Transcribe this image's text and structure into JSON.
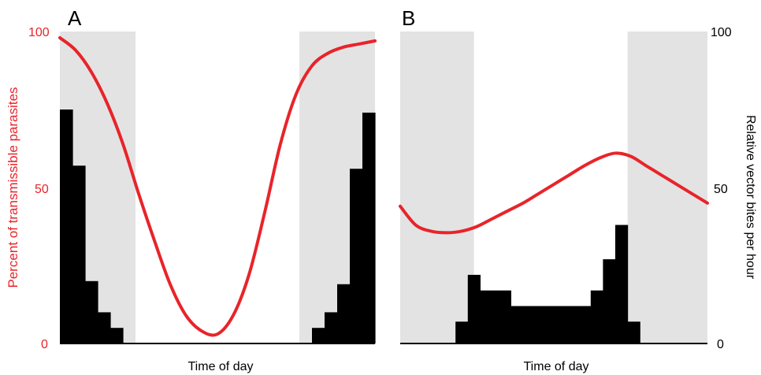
{
  "chart_data": [
    {
      "type": "bar+line",
      "panel_label": "A",
      "xlabel": "Time of day",
      "ylabel": "Percent of transmissible parasites",
      "ylim": [
        0,
        100
      ],
      "yticks": [
        "0",
        "50",
        "100"
      ],
      "shaded_periods": [
        [
          0,
          0.24
        ],
        [
          0.76,
          1.0
        ]
      ],
      "bars": {
        "x_start": [
          0.0,
          0.04,
          0.08,
          0.12,
          0.16,
          0.8,
          0.84,
          0.88,
          0.92,
          0.96
        ],
        "x_end": [
          0.04,
          0.08,
          0.12,
          0.16,
          0.2,
          0.84,
          0.88,
          0.92,
          0.96,
          1.0
        ],
        "values": [
          75,
          57,
          20,
          10,
          5,
          5,
          10,
          19,
          56,
          74
        ]
      },
      "line": {
        "color": "#e8242a",
        "x": [
          0.0,
          0.05,
          0.1,
          0.15,
          0.2,
          0.25,
          0.3,
          0.35,
          0.4,
          0.45,
          0.5,
          0.55,
          0.6,
          0.65,
          0.7,
          0.75,
          0.8,
          0.85,
          0.9,
          0.95,
          1.0
        ],
        "y": [
          98,
          94,
          87,
          77,
          64,
          48,
          33,
          19,
          9,
          4,
          3,
          9,
          22,
          42,
          64,
          80,
          89,
          93,
          95,
          96,
          97
        ]
      }
    },
    {
      "type": "bar+line",
      "panel_label": "B",
      "xlabel": "Time of day",
      "ylabel": "Relative vector bites per hour",
      "ylim": [
        0,
        100
      ],
      "yticks": [
        "0",
        "50",
        "100"
      ],
      "shaded_periods": [
        [
          0,
          0.24
        ],
        [
          0.74,
          1.0
        ]
      ],
      "bars": {
        "x_start": [
          0.18,
          0.22,
          0.26,
          0.36,
          0.62,
          0.66,
          0.7,
          0.74
        ],
        "x_end": [
          0.22,
          0.26,
          0.36,
          0.62,
          0.66,
          0.7,
          0.74,
          0.78
        ],
        "values": [
          7,
          22,
          17,
          12,
          17,
          27,
          38,
          7
        ]
      },
      "line": {
        "color": "#e8242a",
        "x": [
          0.0,
          0.05,
          0.1,
          0.15,
          0.2,
          0.25,
          0.3,
          0.35,
          0.4,
          0.45,
          0.5,
          0.55,
          0.6,
          0.65,
          0.7,
          0.75,
          0.8,
          0.85,
          0.9,
          0.95,
          1.0
        ],
        "y": [
          44,
          38,
          36,
          35.5,
          36,
          37.5,
          40,
          42.5,
          45,
          48,
          51,
          54,
          57,
          59.5,
          61,
          60,
          57,
          54,
          51,
          48,
          45
        ]
      }
    }
  ]
}
